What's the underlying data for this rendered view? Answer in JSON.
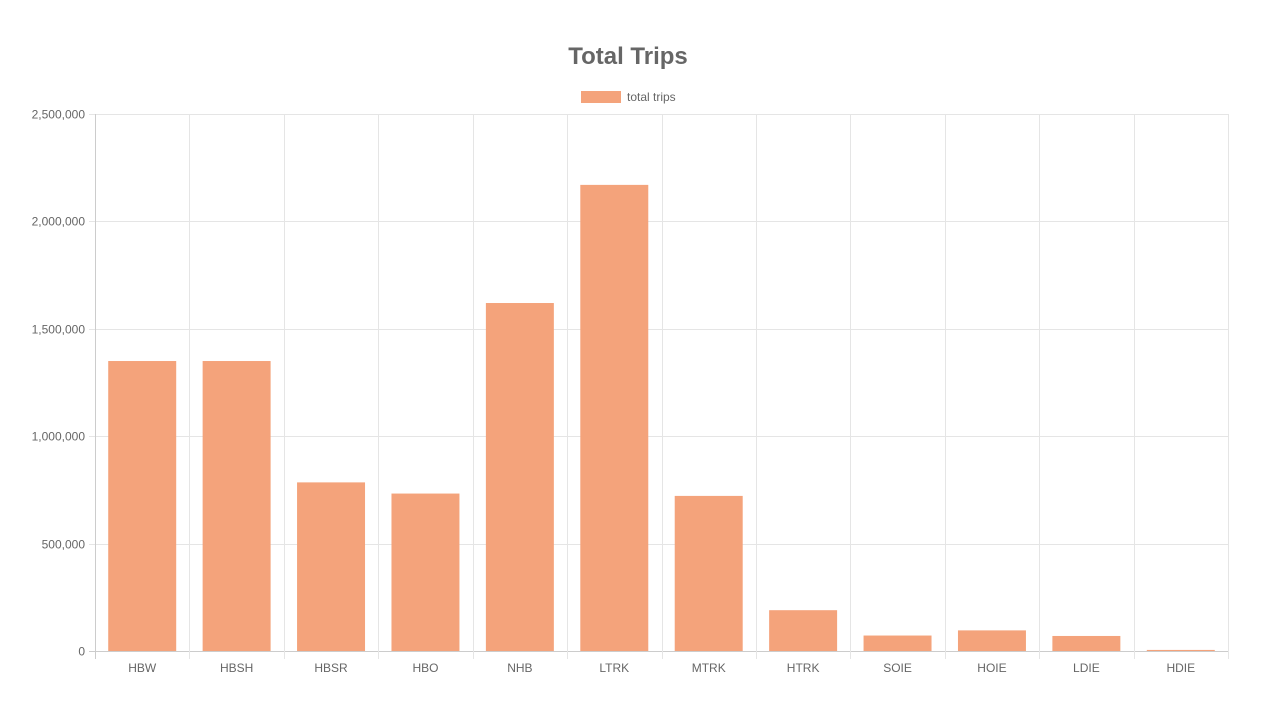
{
  "chart_data": {
    "type": "bar",
    "title": "Total Trips",
    "xlabel": "",
    "ylabel": "",
    "categories": [
      "HBW",
      "HBSH",
      "HBSR",
      "HBO",
      "NHB",
      "LTRK",
      "MTRK",
      "HTRK",
      "SOIE",
      "HOIE",
      "LDIE",
      "HDIE"
    ],
    "series": [
      {
        "name": "total trips",
        "color": "#f4a37b",
        "values": [
          1350000,
          1350000,
          785000,
          733000,
          1620000,
          2170000,
          722000,
          190000,
          72000,
          96000,
          70000,
          5000
        ]
      }
    ],
    "ylim": [
      0,
      2500000
    ],
    "yticks": [
      0,
      500000,
      1000000,
      1500000,
      2000000,
      2500000
    ],
    "ytick_labels": [
      "0",
      "500,000",
      "1,000,000",
      "1,500,000",
      "2,000,000",
      "2,500,000"
    ],
    "grid": true,
    "legend_position": "top-center"
  }
}
